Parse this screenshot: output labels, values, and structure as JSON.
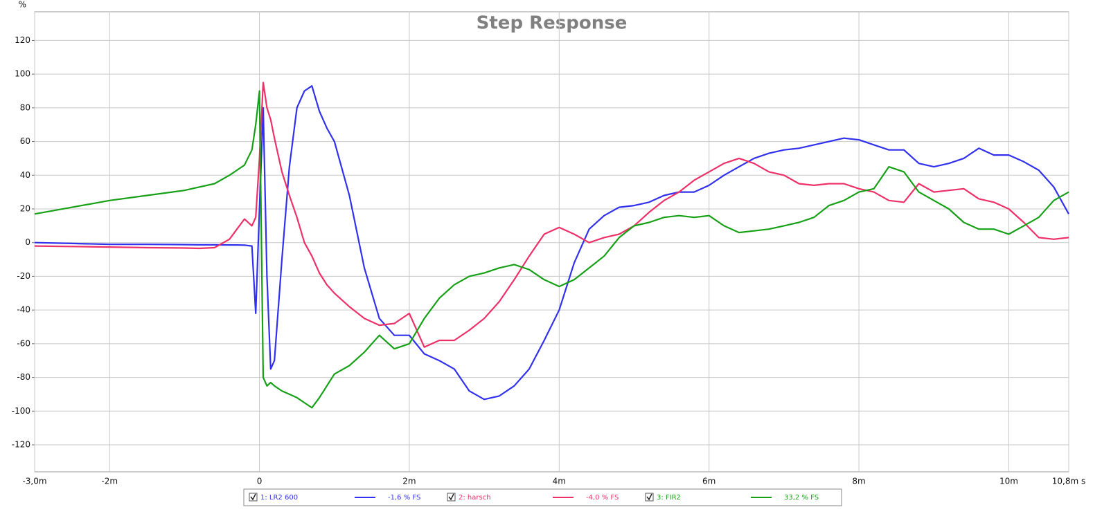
{
  "chart_data": {
    "type": "line",
    "title": "Step Response",
    "y_unit": "%",
    "x": [
      -3,
      -2.5,
      -2,
      -1.5,
      -1,
      -0.8,
      -0.6,
      -0.4,
      -0.3,
      -0.2,
      -0.1,
      -0.05,
      0,
      0.05,
      0.1,
      0.15,
      0.2,
      0.3,
      0.4,
      0.5,
      0.6,
      0.7,
      0.8,
      0.9,
      1,
      1.2,
      1.4,
      1.6,
      1.8,
      2,
      2.2,
      2.4,
      2.6,
      2.8,
      3,
      3.2,
      3.4,
      3.6,
      3.8,
      4,
      4.2,
      4.4,
      4.6,
      4.8,
      5,
      5.2,
      5.4,
      5.6,
      5.8,
      6,
      6.2,
      6.4,
      6.6,
      6.8,
      7,
      7.2,
      7.4,
      7.6,
      7.8,
      8,
      8.2,
      8.4,
      8.6,
      8.8,
      9,
      9.2,
      9.4,
      9.6,
      9.8,
      10,
      10.2,
      10.4,
      10.6,
      10.8
    ],
    "series": [
      {
        "name": "1: LR2 600",
        "fs_label": "-1,6 % FS",
        "color": "#3030ee",
        "values": [
          0,
          -0.5,
          -1,
          -1,
          -1.2,
          -1.3,
          -1.3,
          -1.4,
          -1.4,
          -1.5,
          -2,
          -42,
          20,
          80,
          -20,
          -75,
          -70,
          -10,
          45,
          80,
          90,
          93,
          78,
          68,
          60,
          28,
          -15,
          -45,
          -55,
          -55,
          -66,
          -70,
          -75,
          -88,
          -93,
          -91,
          -85,
          -75,
          -58,
          -40,
          -12,
          8,
          16,
          21,
          22,
          24,
          28,
          30,
          30,
          34,
          40,
          45,
          50,
          53,
          55,
          56,
          58,
          60,
          62,
          61,
          58,
          55,
          55,
          47,
          45,
          47,
          50,
          56,
          52,
          52,
          48,
          43,
          33,
          17
        ]
      },
      {
        "name": "2: harsch",
        "fs_label": "-4,0 % FS",
        "color": "#ee3068",
        "values": [
          -2,
          -2.3,
          -2.6,
          -3,
          -3.2,
          -3.4,
          -3,
          2,
          8,
          14,
          10,
          15,
          50,
          95,
          80,
          73,
          62,
          42,
          28,
          15,
          0,
          -8,
          -18,
          -25,
          -30,
          -38,
          -45,
          -49,
          -48,
          -42,
          -62,
          -58,
          -58,
          -52,
          -45,
          -35,
          -22,
          -8,
          5,
          9,
          5,
          0,
          3,
          5,
          10,
          18,
          25,
          30,
          37,
          42,
          47,
          50,
          47,
          42,
          40,
          35,
          34,
          35,
          35,
          32,
          30,
          25,
          24,
          35,
          30,
          31,
          32,
          26,
          24,
          20,
          12,
          3,
          2,
          3
        ]
      },
      {
        "name": "3: FIR2",
        "fs_label": "33,2 % FS",
        "color": "#16a016",
        "values": [
          17,
          21,
          25,
          28,
          31,
          33,
          35,
          40,
          43,
          46,
          55,
          70,
          90,
          -80,
          -85,
          -83,
          -85,
          -88,
          -90,
          -92,
          -95,
          -98,
          -92,
          -85,
          -78,
          -73,
          -65,
          -55,
          -63,
          -60,
          -45,
          -33,
          -25,
          -20,
          -18,
          -15,
          -13,
          -16,
          -22,
          -26,
          -22,
          -15,
          -8,
          3,
          10,
          12,
          15,
          16,
          15,
          16,
          10,
          6,
          7,
          8,
          10,
          12,
          15,
          22,
          25,
          30,
          32,
          45,
          42,
          30,
          25,
          20,
          12,
          8,
          8,
          5,
          10,
          15,
          25,
          30
        ]
      }
    ],
    "xlim": [
      -3,
      10.8
    ],
    "xticks": [
      {
        "value": -3,
        "label": "-3,0m"
      },
      {
        "value": -2,
        "label": "-2m"
      },
      0,
      {
        "value": 2,
        "label": "2m"
      },
      {
        "value": 4,
        "label": "4m"
      },
      {
        "value": 6,
        "label": "6m"
      },
      {
        "value": 8,
        "label": "8m"
      },
      {
        "value": 10,
        "label": "10m"
      },
      {
        "value": 10.8,
        "label": "10,8m s"
      }
    ],
    "ylim": [
      -136,
      137
    ],
    "yticks": [
      -120,
      -100,
      -80,
      -60,
      -40,
      -20,
      0,
      20,
      40,
      60,
      80,
      100,
      120
    ],
    "grid": true
  }
}
